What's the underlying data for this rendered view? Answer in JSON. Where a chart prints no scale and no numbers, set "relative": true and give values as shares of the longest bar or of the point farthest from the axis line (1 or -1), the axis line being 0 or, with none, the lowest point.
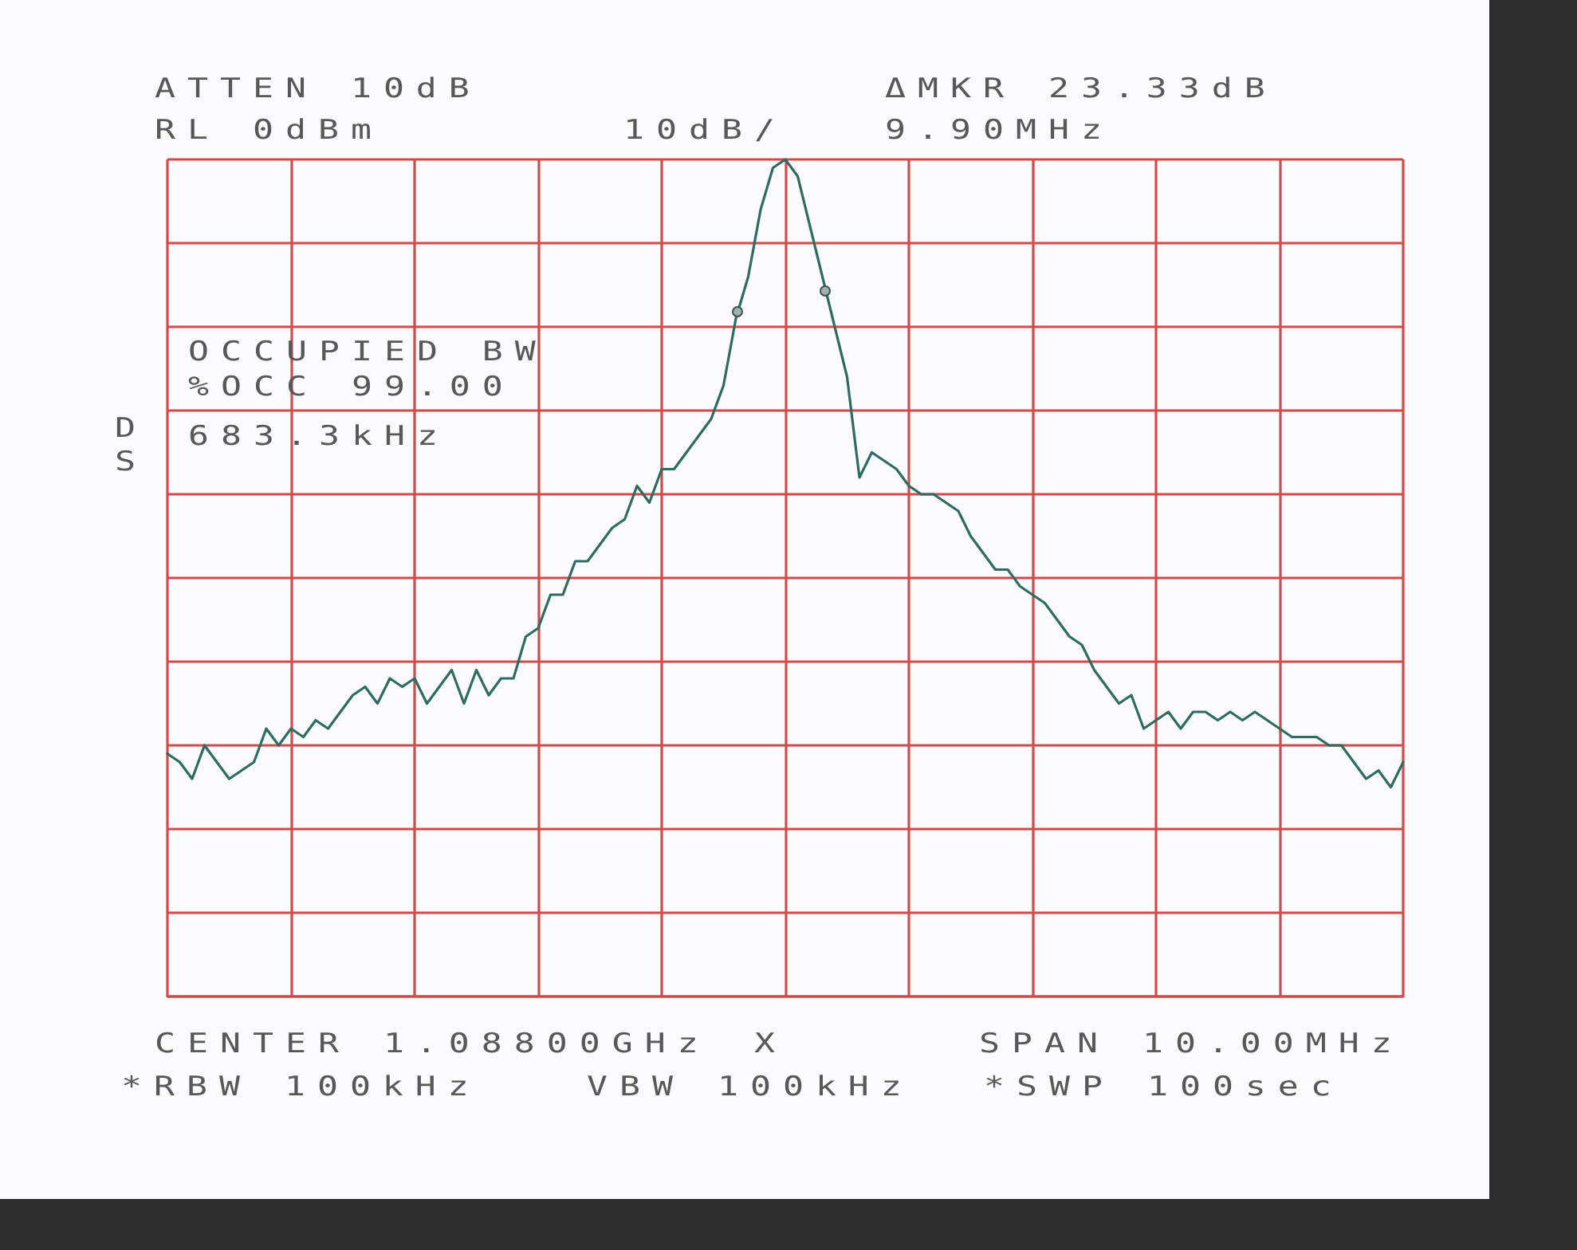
{
  "chart_data": {
    "type": "line",
    "relative": true,
    "grid": true,
    "marker": "none",
    "categories": [
      null,
      null,
      null,
      null,
      null,
      null,
      null,
      null,
      null,
      null,
      null,
      null,
      null,
      null,
      null,
      null,
      null,
      null,
      null,
      null,
      null,
      null,
      null,
      null,
      null,
      null,
      null,
      null,
      null,
      null,
      null,
      null,
      null,
      null,
      null,
      null,
      null,
      null,
      null,
      null,
      null,
      null,
      null,
      null,
      null,
      null,
      null,
      null,
      null,
      null,
      null,
      null,
      null,
      null,
      null,
      null,
      null,
      null,
      null,
      null,
      null,
      null,
      null,
      null,
      null,
      null,
      null,
      null,
      null,
      null,
      null,
      null,
      null,
      null,
      null,
      null,
      null,
      null,
      null,
      null,
      null,
      null,
      null,
      null,
      null,
      null,
      null,
      null,
      null,
      null,
      null,
      null,
      null,
      null,
      null,
      null,
      null,
      null,
      null,
      null,
      null
    ],
    "series": [
      {
        "color": "#2e6b62",
        "values": [
          0.29,
          0.28,
          0.26,
          0.3,
          0.28,
          0.26,
          0.27,
          0.28,
          0.32,
          0.3,
          0.32,
          0.31,
          0.33,
          0.32,
          0.34,
          0.36,
          0.37,
          0.35,
          0.38,
          0.37,
          0.38,
          0.35,
          0.37,
          0.39,
          0.35,
          0.39,
          0.36,
          0.38,
          0.38,
          0.43,
          0.44,
          0.48,
          0.48,
          0.52,
          0.52,
          0.54,
          0.56,
          0.57,
          0.61,
          0.59,
          0.63,
          0.63,
          0.65,
          0.67,
          0.69,
          0.73,
          0.81,
          0.86,
          0.94,
          0.99,
          1,
          0.98,
          0.92,
          0.86,
          0.8,
          0.74,
          0.62,
          0.65,
          0.64,
          0.63,
          0.61,
          0.6,
          0.6,
          0.59,
          0.58,
          0.55,
          0.53,
          0.51,
          0.51,
          0.49,
          0.48,
          0.47,
          0.45,
          0.43,
          0.42,
          0.39,
          0.37,
          0.35,
          0.36,
          0.32,
          0.33,
          0.34,
          0.32,
          0.34,
          0.34,
          0.33,
          0.34,
          0.33,
          0.34,
          0.33,
          0.32,
          0.31,
          0.31,
          0.31,
          0.3,
          0.3,
          0.28,
          0.26,
          0.27,
          0.25,
          0.28
        ]
      }
    ],
    "annotations": [
      "ATTEN 10dB",
      "RL 0dBm",
      "10dB/",
      "ΔMKR 23.33dB",
      "9.90MHz",
      "OCCUPIED BW",
      "%OCC 99.00",
      "683.3kHz",
      "D",
      "S",
      "CENTER 1.08800GHz",
      "X",
      "SPAN 10.00MHz",
      "*RBW 100kHz",
      "VBW 100kHz",
      "*SWP 100sec"
    ]
  }
}
